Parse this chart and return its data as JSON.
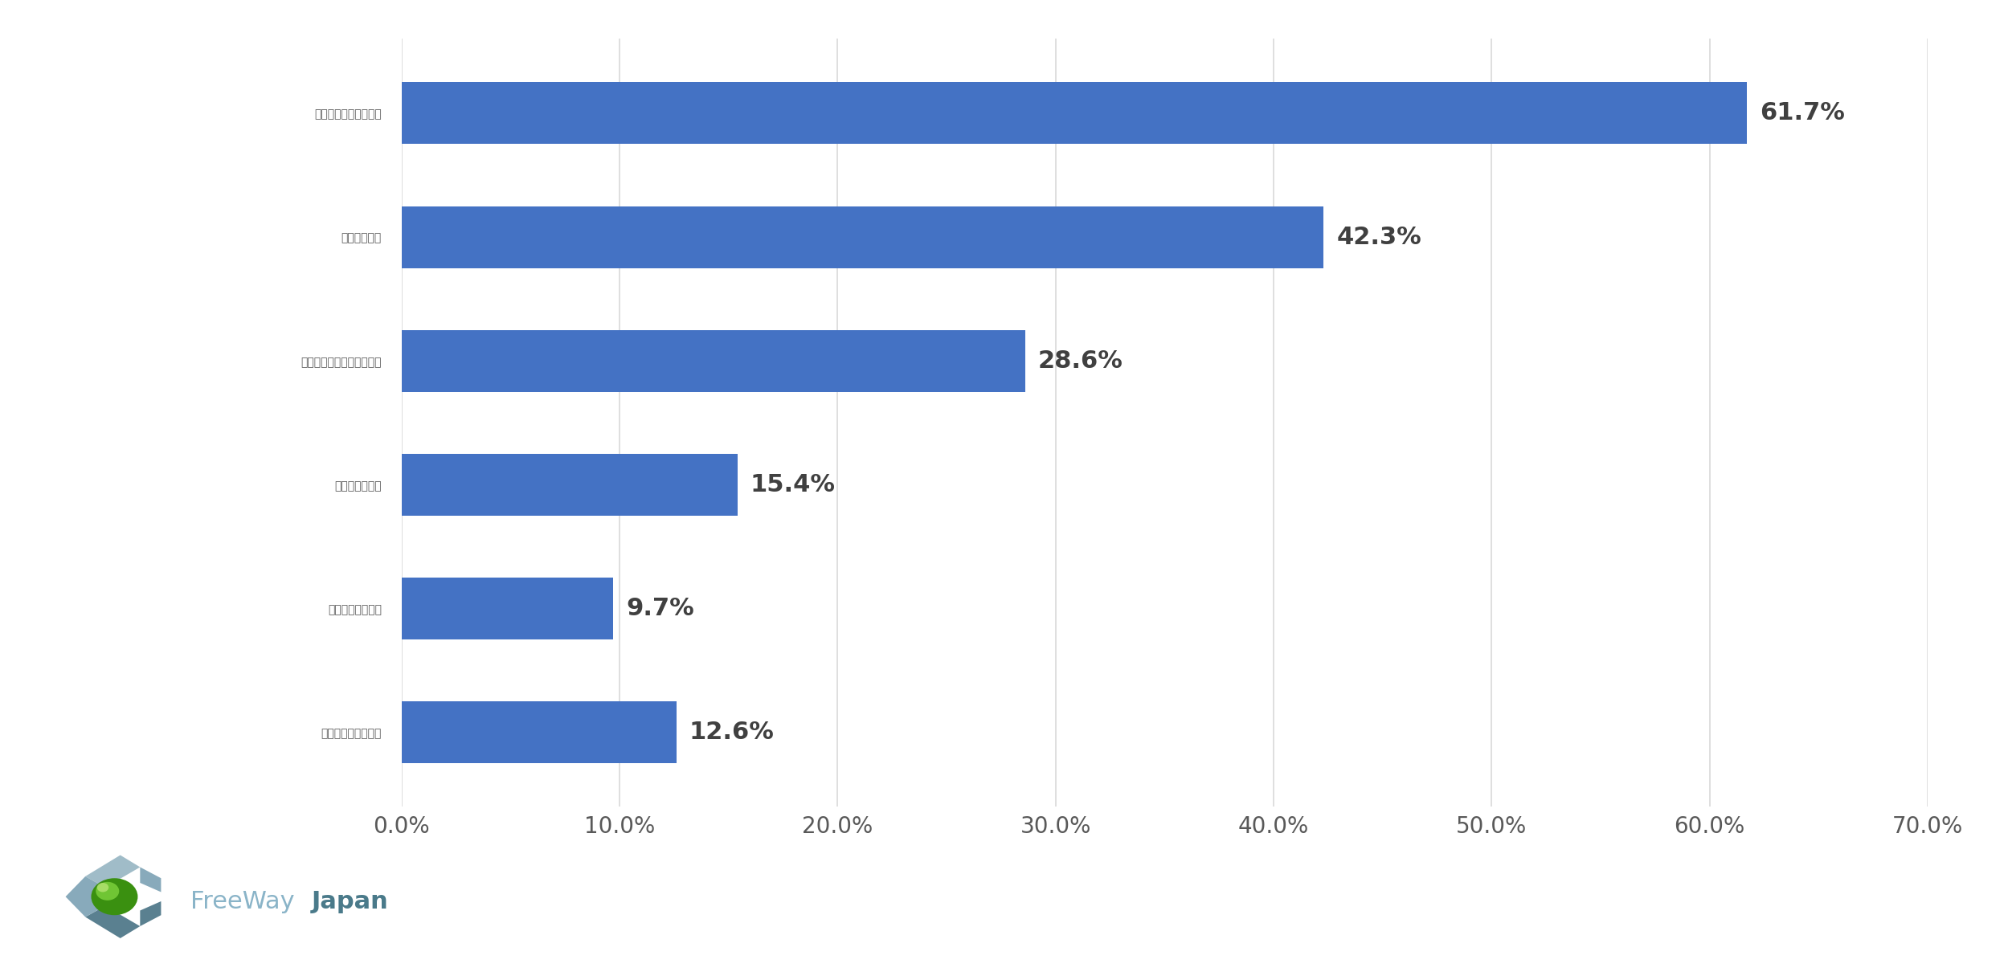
{
  "categories": [
    "受注量や販売量の動き",
    "取引先の様子",
    "受注価格や販売価格の動き",
    "競争相手の様子",
    "給与・賞与の変動",
    "その他（自由回答）"
  ],
  "values": [
    61.7,
    42.3,
    28.6,
    15.4,
    9.7,
    12.6
  ],
  "bar_color": "#4472c4",
  "label_color": "#595959",
  "background_color": "#ffffff",
  "xlim": [
    0,
    70
  ],
  "xticks": [
    0,
    10,
    20,
    30,
    40,
    50,
    60,
    70
  ],
  "xtick_labels": [
    "0.0%",
    "10.0%",
    "20.0%",
    "30.0%",
    "40.0%",
    "50.0%",
    "60.0%",
    "70.0%"
  ],
  "grid_color": "#d9d9d9",
  "bar_height": 0.5,
  "font_size_labels": 22,
  "font_size_values": 22,
  "font_size_ticks": 20,
  "freeway_color": "#8ab4c8",
  "japan_color": "#4a7a8a",
  "value_label_color": "#404040"
}
